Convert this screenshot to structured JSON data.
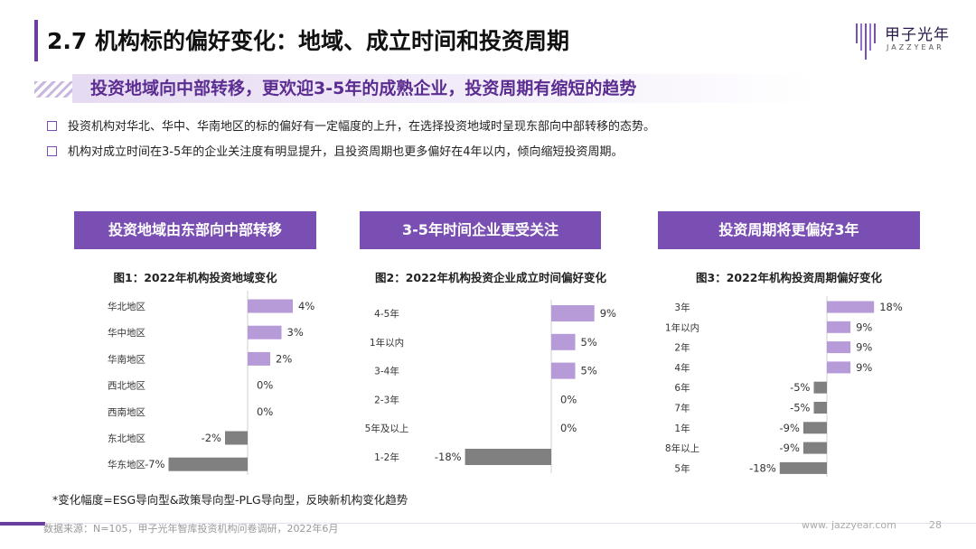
{
  "slide": {
    "title": "2.7 机构标的偏好变化：地域、成立时间和投资周期",
    "subtitle": "投资地域向中部转移，更欢迎3-5年的成熟企业，投资周期有缩短的趋势",
    "bullets": [
      "投资机构对华北、华中、华南地区的标的偏好有一定幅度的上升，在选择投资地域时呈现东部向中部转移的态势。",
      "机构对成立时间在3-5年的企业关注度有明显提升，且投资周期也更多偏好在4年以内，倾向缩短投资周期。"
    ],
    "headers": [
      "投资地域由东部向中部转移",
      "3-5年时间企业更受关注",
      "投资周期将更偏好3年"
    ],
    "note": "*变化幅度=ESG导向型&政策导向型-PLG导向型，反映新机构变化趋势",
    "source": "数据来源：N=105，甲子光年智库投资机构问卷调研，2022年6月",
    "website": "www. jazzyear.com",
    "page_number": "28"
  },
  "logo": {
    "cn": "甲子光年",
    "en": "JAZZYEAR"
  },
  "colors": {
    "positive": "#b79ad8",
    "negative": "#808080",
    "accent": "#7a4fb3",
    "title_bar": "#6b3fa0"
  },
  "chart_data": [
    {
      "type": "bar",
      "orientation": "horizontal",
      "title": "图1：2022年机构投资地域变化",
      "categories": [
        "华北地区",
        "华中地区",
        "华南地区",
        "西北地区",
        "西南地区",
        "东北地区",
        "华东地区"
      ],
      "values": [
        4,
        3,
        2,
        0,
        0,
        -2,
        -7
      ],
      "labels": [
        "4%",
        "3%",
        "2%",
        "0%",
        "0%",
        "-2%",
        "-7%"
      ],
      "unit": "%"
    },
    {
      "type": "bar",
      "orientation": "horizontal",
      "title": "图2：2022年机构投资企业成立时间偏好变化",
      "categories": [
        "4-5年",
        "1年以内",
        "3-4年",
        "2-3年",
        "5年及以上",
        "1-2年"
      ],
      "values": [
        9,
        5,
        5,
        0,
        0,
        -18
      ],
      "labels": [
        "9%",
        "5%",
        "5%",
        "0%",
        "0%",
        "-18%"
      ],
      "unit": "%"
    },
    {
      "type": "bar",
      "orientation": "horizontal",
      "title": "图3：2022年机构投资周期偏好变化",
      "categories": [
        "3年",
        "1年以内",
        "2年",
        "4年",
        "6年",
        "7年",
        "1年",
        "8年以上",
        "5年"
      ],
      "values": [
        18,
        9,
        9,
        9,
        -5,
        -5,
        -9,
        -9,
        -18
      ],
      "labels": [
        "18%",
        "9%",
        "9%",
        "9%",
        "-5%",
        "-5%",
        "-9%",
        "-9%",
        "-18%"
      ],
      "unit": "%"
    }
  ]
}
